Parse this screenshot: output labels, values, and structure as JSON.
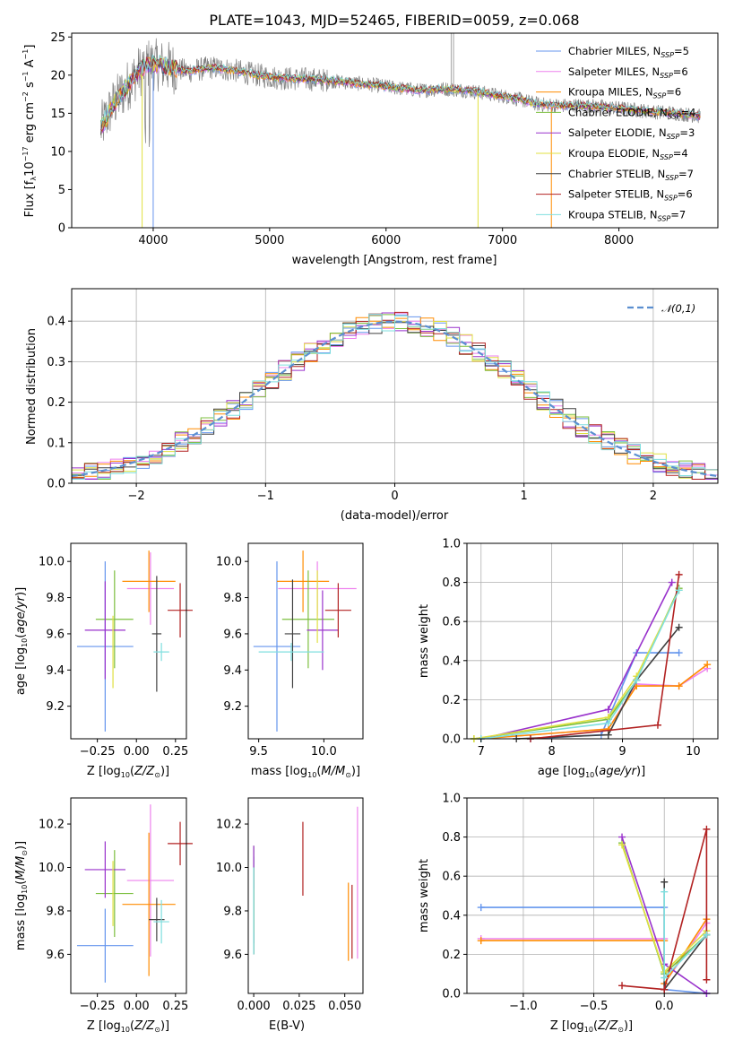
{
  "chart_data": [
    {
      "id": "spectrum",
      "type": "line",
      "title": "PLATE=1043, MJD=52465, FIBERID=0059, z=0.068",
      "xlabel": "wavelength [Angstrom, rest frame]",
      "ylabel": "Flux [f_λ 10^-17 erg cm^-2 s^-1 A^-1]",
      "xlim": [
        3300,
        8850
      ],
      "ylim": [
        0,
        25.5
      ],
      "xticks": [
        "4000",
        "5000",
        "6000",
        "7000",
        "8000"
      ],
      "yticks": [
        "0",
        "5",
        "10",
        "15",
        "20",
        "25"
      ],
      "legend_location": "top-right",
      "observed_spectrum_color": "#808080",
      "series": [
        {
          "name": "Chabrier MILES",
          "nssp": "5",
          "color": "#6495ed"
        },
        {
          "name": "Salpeter MILES",
          "nssp": "6",
          "color": "#ee82ee"
        },
        {
          "name": "Kroupa MILES",
          "nssp": "6",
          "color": "#ff8c00"
        },
        {
          "name": "Chabrier ELODIE",
          "nssp": "4",
          "color": "#7cbf3f"
        },
        {
          "name": "Salpeter ELODIE",
          "nssp": "3",
          "color": "#9932cc"
        },
        {
          "name": "Kroupa ELODIE",
          "nssp": "4",
          "color": "#e0e040"
        },
        {
          "name": "Chabrier STELIB",
          "nssp": "7",
          "color": "#404040"
        },
        {
          "name": "Salpeter STELIB",
          "nssp": "6",
          "color": "#b22222"
        },
        {
          "name": "Kroupa STELIB",
          "nssp": "7",
          "color": "#7fdfdf"
        }
      ],
      "continuum_points": [
        [
          3550,
          13
        ],
        [
          3650,
          16
        ],
        [
          3750,
          18
        ],
        [
          3850,
          20
        ],
        [
          3950,
          21.5
        ],
        [
          4050,
          21.3
        ],
        [
          4150,
          21
        ],
        [
          4300,
          20.5
        ],
        [
          4500,
          21
        ],
        [
          4700,
          20.6
        ],
        [
          4900,
          20
        ],
        [
          5100,
          19.6
        ],
        [
          5300,
          19.5
        ],
        [
          5500,
          19.3
        ],
        [
          5700,
          19
        ],
        [
          5900,
          18.7
        ],
        [
          6100,
          18.3
        ],
        [
          6300,
          18
        ],
        [
          6500,
          18.2
        ],
        [
          6700,
          18
        ],
        [
          6900,
          17.5
        ],
        [
          7100,
          17
        ],
        [
          7300,
          16.2
        ],
        [
          7500,
          16
        ],
        [
          7700,
          16
        ],
        [
          7900,
          15.8
        ],
        [
          8100,
          15.5
        ],
        [
          8300,
          15.2
        ],
        [
          8500,
          15
        ],
        [
          8700,
          14.6
        ]
      ]
    },
    {
      "id": "residual_hist",
      "type": "line",
      "xlabel": "(data-model)/error",
      "ylabel": "Normed distribution",
      "xlim": [
        -2.5,
        2.5
      ],
      "ylim": [
        0,
        0.48
      ],
      "xticks": [
        "−2",
        "−1",
        "0",
        "1",
        "2"
      ],
      "yticks": [
        "0.0",
        "0.1",
        "0.2",
        "0.3",
        "0.4"
      ],
      "legend_location": "top-right",
      "reference_curve": {
        "name": "𝒩(0,1)",
        "color": "#5b8fd0"
      },
      "grid": true
    },
    {
      "id": "age_vs_Z",
      "type": "scatter",
      "xlabel": "Z [log10(Z/Z⊙)]",
      "ylabel": "age  [log10(age/yr)]",
      "xlim": [
        -0.42,
        0.32
      ],
      "ylim": [
        9.02,
        10.1
      ],
      "xticks": [
        "−0.25",
        "0.00",
        "0.25"
      ],
      "xtick_values": [
        -0.25,
        0,
        0.25
      ],
      "yticks": [
        "9.2",
        "9.4",
        "9.6",
        "9.8",
        "10.0"
      ],
      "ytick_values": [
        9.2,
        9.4,
        9.6,
        9.8,
        10.0
      ],
      "points": [
        {
          "color": "#6495ed",
          "x": -0.2,
          "y": 9.53,
          "xerr": 0.18,
          "yerr": 0.47
        },
        {
          "color": "#ee82ee",
          "x": 0.09,
          "y": 9.85,
          "xerr": 0.15,
          "yerr": 0.2
        },
        {
          "color": "#ff8c00",
          "x": 0.08,
          "y": 9.89,
          "xerr": 0.17,
          "yerr": 0.17
        },
        {
          "color": "#7cbf3f",
          "x": -0.14,
          "y": 9.68,
          "xerr": 0.12,
          "yerr": 0.27
        },
        {
          "color": "#9932cc",
          "x": -0.2,
          "y": 9.62,
          "xerr": 0.13,
          "yerr": 0.27
        },
        {
          "color": "#e0e040",
          "x": -0.15,
          "y": 9.5,
          "xerr": 0.0,
          "yerr": 0.2
        },
        {
          "color": "#404040",
          "x": 0.13,
          "y": 9.6,
          "xerr": 0.03,
          "yerr": 0.32
        },
        {
          "color": "#b22222",
          "x": 0.28,
          "y": 9.73,
          "xerr": 0.08,
          "yerr": 0.15
        },
        {
          "color": "#7fdfdf",
          "x": 0.16,
          "y": 9.5,
          "xerr": 0.05,
          "yerr": 0.05
        }
      ]
    },
    {
      "id": "age_vs_mass",
      "type": "scatter",
      "xlabel": "mass [log10(M/M⊙)]",
      "ylabel": "",
      "xlim": [
        9.42,
        10.3
      ],
      "ylim": [
        9.02,
        10.1
      ],
      "xticks": [
        "9.5",
        "10.0"
      ],
      "xtick_values": [
        9.5,
        10.0
      ],
      "yticks": [
        "9.2",
        "9.4",
        "9.6",
        "9.8",
        "10.0"
      ],
      "ytick_values": [
        9.2,
        9.4,
        9.6,
        9.8,
        10.0
      ],
      "points": [
        {
          "color": "#6495ed",
          "x": 9.64,
          "y": 9.53,
          "xerr": 0.18,
          "yerr": 0.47
        },
        {
          "color": "#ee82ee",
          "x": 9.95,
          "y": 9.85,
          "xerr": 0.3,
          "yerr": 0.15
        },
        {
          "color": "#ff8c00",
          "x": 9.84,
          "y": 9.89,
          "xerr": 0.2,
          "yerr": 0.17
        },
        {
          "color": "#7cbf3f",
          "x": 9.88,
          "y": 9.68,
          "xerr": 0.2,
          "yerr": 0.27
        },
        {
          "color": "#9932cc",
          "x": 9.99,
          "y": 9.62,
          "xerr": 0.12,
          "yerr": 0.22
        },
        {
          "color": "#e0e040",
          "x": 9.95,
          "y": 9.75,
          "xerr": 0.0,
          "yerr": 0.2
        },
        {
          "color": "#404040",
          "x": 9.76,
          "y": 9.6,
          "xerr": 0.06,
          "yerr": 0.3
        },
        {
          "color": "#b22222",
          "x": 10.11,
          "y": 9.73,
          "xerr": 0.1,
          "yerr": 0.15
        },
        {
          "color": "#7fdfdf",
          "x": 9.75,
          "y": 9.5,
          "xerr": 0.25,
          "yerr": 0.05
        }
      ]
    },
    {
      "id": "massweight_vs_age",
      "type": "line",
      "xlabel": "age  [log10(age/yr)]",
      "ylabel": "mass weight",
      "xlim": [
        6.8,
        10.35
      ],
      "ylim": [
        0,
        1.0
      ],
      "xticks": [
        "7",
        "8",
        "9",
        "10"
      ],
      "xtick_values": [
        7,
        8,
        9,
        10
      ],
      "yticks": [
        "0.0",
        "0.2",
        "0.4",
        "0.6",
        "0.8",
        "1.0"
      ],
      "ytick_values": [
        0,
        0.2,
        0.4,
        0.6,
        0.8,
        1.0
      ],
      "grid": true,
      "series": [
        {
          "color": "#6495ed",
          "x": [
            7.7,
            8.7,
            9.2,
            9.8
          ],
          "y": [
            0.0,
            0.02,
            0.44,
            0.44
          ]
        },
        {
          "color": "#ee82ee",
          "x": [
            7.0,
            8.8,
            9.2,
            9.8,
            10.2
          ],
          "y": [
            0.0,
            0.05,
            0.28,
            0.27,
            0.36
          ]
        },
        {
          "color": "#ff8c00",
          "x": [
            7.0,
            8.8,
            9.2,
            9.8,
            10.2
          ],
          "y": [
            0.0,
            0.05,
            0.27,
            0.27,
            0.38
          ]
        },
        {
          "color": "#7cbf3f",
          "x": [
            6.9,
            8.8,
            9.2,
            9.8
          ],
          "y": [
            0.0,
            0.1,
            0.3,
            0.77
          ]
        },
        {
          "color": "#9932cc",
          "x": [
            7.0,
            8.8,
            9.7
          ],
          "y": [
            0.0,
            0.15,
            0.8
          ]
        },
        {
          "color": "#e0e040",
          "x": [
            6.9,
            8.8,
            9.2,
            9.8
          ],
          "y": [
            0.0,
            0.11,
            0.32,
            0.76
          ]
        },
        {
          "color": "#404040",
          "x": [
            7.5,
            8.8,
            9.2,
            9.8
          ],
          "y": [
            0.0,
            0.02,
            0.3,
            0.57
          ]
        },
        {
          "color": "#b22222",
          "x": [
            7.7,
            9.5,
            9.8
          ],
          "y": [
            0.0,
            0.07,
            0.84
          ]
        },
        {
          "color": "#7fdfdf",
          "x": [
            7.0,
            8.8,
            9.2,
            9.8
          ],
          "y": [
            0.0,
            0.08,
            0.3,
            0.76
          ]
        }
      ]
    },
    {
      "id": "mass_vs_Z",
      "type": "scatter",
      "xlabel": "Z [log10(Z/Z⊙)]",
      "ylabel": "mass [log10(M/M⊙)]",
      "xlim": [
        -0.42,
        0.32
      ],
      "ylim": [
        9.42,
        10.32
      ],
      "xticks": [
        "−0.25",
        "0.00",
        "0.25"
      ],
      "xtick_values": [
        -0.25,
        0,
        0.25
      ],
      "yticks": [
        "9.6",
        "9.8",
        "10.0",
        "10.2"
      ],
      "ytick_values": [
        9.6,
        9.8,
        10.0,
        10.2
      ],
      "points": [
        {
          "color": "#6495ed",
          "x": -0.2,
          "y": 9.64,
          "xerr": 0.18,
          "yerr": 0.17
        },
        {
          "color": "#ee82ee",
          "x": 0.09,
          "y": 9.94,
          "xerr": 0.15,
          "yerr": 0.35
        },
        {
          "color": "#ff8c00",
          "x": 0.08,
          "y": 9.83,
          "xerr": 0.17,
          "yerr": 0.33
        },
        {
          "color": "#7cbf3f",
          "x": -0.14,
          "y": 9.88,
          "xerr": 0.12,
          "yerr": 0.2
        },
        {
          "color": "#9932cc",
          "x": -0.2,
          "y": 9.99,
          "xerr": 0.13,
          "yerr": 0.13
        },
        {
          "color": "#e0e040",
          "x": -0.15,
          "y": 9.88,
          "xerr": 0.0,
          "yerr": 0.15
        },
        {
          "color": "#404040",
          "x": 0.13,
          "y": 9.76,
          "xerr": 0.05,
          "yerr": 0.1
        },
        {
          "color": "#b22222",
          "x": 0.28,
          "y": 10.11,
          "xerr": 0.08,
          "yerr": 0.1
        },
        {
          "color": "#7fdfdf",
          "x": 0.16,
          "y": 9.75,
          "xerr": 0.05,
          "yerr": 0.1
        }
      ]
    },
    {
      "id": "mass_vs_ebv",
      "type": "scatter",
      "xlabel": "E(B-V)",
      "ylabel": "",
      "xlim": [
        -0.003,
        0.06
      ],
      "ylim": [
        9.42,
        10.32
      ],
      "xticks": [
        "0.000",
        "0.025",
        "0.050"
      ],
      "xtick_values": [
        0,
        0.025,
        0.05
      ],
      "yticks": [
        "9.6",
        "9.8",
        "10.0",
        "10.2"
      ],
      "ytick_values": [
        9.6,
        9.8,
        10.0,
        10.2
      ],
      "points": [
        {
          "color": "#6495ed",
          "x": 0.0,
          "y": 9.85,
          "xerr": 0,
          "yerr": 0.2
        },
        {
          "color": "#ee82ee",
          "x": 0.057,
          "y": 9.93,
          "xerr": 0,
          "yerr": 0.35
        },
        {
          "color": "#ff8c00",
          "x": 0.052,
          "y": 9.75,
          "xerr": 0,
          "yerr": 0.18
        },
        {
          "color": "#7cbf3f",
          "x": 0.0,
          "y": 9.85,
          "xerr": 0,
          "yerr": 0.25
        },
        {
          "color": "#9932cc",
          "x": 0.0,
          "y": 10.0,
          "xerr": 0,
          "yerr": 0.1
        },
        {
          "color": "#e0e040",
          "x": 0.0,
          "y": 9.85,
          "xerr": 0,
          "yerr": 0.15
        },
        {
          "color": "#404040",
          "x": 0.0,
          "y": 9.8,
          "xerr": 0,
          "yerr": 0.2
        },
        {
          "color": "#b22222",
          "x": 0.054,
          "y": 9.75,
          "xerr": 0,
          "yerr": 0.17
        },
        {
          "color": "#7fdfdf",
          "x": 0.0,
          "y": 9.8,
          "xerr": 0,
          "yerr": 0.2
        }
      ],
      "extra_segments": [
        {
          "color": "#b22222",
          "x": 0.027,
          "y0": 9.87,
          "y1": 10.21
        }
      ]
    },
    {
      "id": "massweight_vs_Z",
      "type": "line",
      "xlabel": "Z [log10(Z/Z⊙)]",
      "ylabel": "mass weight",
      "xlim": [
        -1.4,
        0.38
      ],
      "ylim": [
        0,
        1.0
      ],
      "xticks": [
        "−1.0",
        "−0.5",
        "0.0"
      ],
      "xtick_values": [
        -1.0,
        -0.5,
        0
      ],
      "yticks": [
        "0.0",
        "0.2",
        "0.4",
        "0.6",
        "0.8",
        "1.0"
      ],
      "ytick_values": [
        0,
        0.2,
        0.4,
        0.6,
        0.8,
        1.0
      ],
      "grid": true,
      "series": [
        {
          "color": "#6495ed",
          "x": [
            -1.3,
            0.0,
            0.0,
            0.3
          ],
          "y": [
            0.44,
            0.44,
            0.02,
            0.0
          ]
        },
        {
          "color": "#ee82ee",
          "x": [
            -1.3,
            0.0,
            0.0,
            0.3
          ],
          "y": [
            0.28,
            0.28,
            0.05,
            0.36
          ]
        },
        {
          "color": "#ff8c00",
          "x": [
            -1.3,
            0.0,
            0.0,
            0.3
          ],
          "y": [
            0.27,
            0.27,
            0.05,
            0.38
          ]
        },
        {
          "color": "#7cbf3f",
          "x": [
            -0.3,
            0.0,
            0.3
          ],
          "y": [
            0.77,
            0.1,
            0.3
          ]
        },
        {
          "color": "#9932cc",
          "x": [
            -0.3,
            0.0,
            0.3
          ],
          "y": [
            0.8,
            0.15,
            0.0
          ]
        },
        {
          "color": "#e0e040",
          "x": [
            -0.3,
            0.0,
            0.3
          ],
          "y": [
            0.76,
            0.11,
            0.32
          ]
        },
        {
          "color": "#404040",
          "x": [
            0.0,
            0.0,
            0.3
          ],
          "y": [
            0.57,
            0.02,
            0.3
          ]
        },
        {
          "color": "#b22222",
          "x": [
            -0.3,
            0.0,
            0.3,
            0.3
          ],
          "y": [
            0.04,
            0.02,
            0.84,
            0.07
          ]
        },
        {
          "color": "#7fdfdf",
          "x": [
            0.0,
            0.0,
            0.3
          ],
          "y": [
            0.52,
            0.08,
            0.3
          ]
        }
      ]
    }
  ]
}
